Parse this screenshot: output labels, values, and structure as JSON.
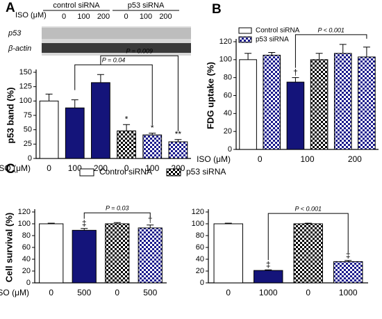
{
  "chart_data": [
    {
      "type": "bar",
      "panel": "A",
      "blot": {
        "dose_label": "ISO (μM)",
        "groups": [
          "control siRNA",
          "p53 siRNA"
        ],
        "doses": [
          "0",
          "100",
          "200",
          "0",
          "100",
          "200"
        ],
        "rows": [
          "p53",
          "β-actin"
        ]
      },
      "ylabel": "p53 band (%)",
      "xlabel": "ISO (μM)",
      "categories": [
        "0",
        "100",
        "200",
        "0",
        "100",
        "200"
      ],
      "values": [
        100,
        88,
        132,
        48,
        41,
        29
      ],
      "errors": [
        12,
        14,
        14,
        11,
        3,
        4
      ],
      "patterns": [
        "white",
        "navy",
        "navy",
        "blackCheck",
        "blueCheck",
        "blueCheck"
      ],
      "marks": [
        null,
        null,
        null,
        "*",
        "*",
        "**"
      ],
      "brackets": [
        {
          "label": "P = 0.04",
          "from": 1,
          "to": 4
        },
        {
          "label": "P = 0.009",
          "from": 2,
          "to": 5
        }
      ],
      "ylim": [
        0,
        150
      ],
      "yticks": [
        0,
        25,
        50,
        75,
        100,
        125,
        150
      ]
    },
    {
      "type": "bar",
      "panel": "B",
      "ylabel": "FDG uptake (%)",
      "xlabel": "ISO (μM)",
      "categories": [
        "0",
        "100",
        "200"
      ],
      "series": [
        {
          "name": "Control siRNA",
          "values": [
            100,
            75,
            107
          ],
          "errors": [
            7,
            5,
            10
          ],
          "patterns": [
            "white",
            "navy",
            "blueCheck"
          ],
          "marks": [
            null,
            "†",
            null
          ]
        },
        {
          "name": "p53 siRNA",
          "values": [
            105,
            100,
            103
          ],
          "errors": [
            3,
            7,
            11
          ],
          "patterns": [
            "blueCheck",
            "blackCheck",
            "blueCheck"
          ],
          "marks": [
            null,
            null,
            null
          ]
        }
      ],
      "brackets": [
        {
          "label": "P < 0.001",
          "from": 2,
          "to": 5
        }
      ],
      "ylim": [
        0,
        120
      ],
      "yticks": [
        0,
        20,
        40,
        60,
        80,
        100,
        120
      ]
    },
    {
      "type": "bar",
      "panel": "C",
      "legend": [
        {
          "name": "Control siRNA",
          "pattern": "white"
        },
        {
          "name": "p53 siRNA",
          "pattern": "blackCheck"
        }
      ],
      "ylabel": "Cell survival (%)",
      "xlabel": "ISO (μM)",
      "categories": [
        "0",
        "500",
        "0",
        "500"
      ],
      "values": [
        100,
        89,
        100,
        93
      ],
      "errors": [
        1,
        3,
        2,
        5
      ],
      "patterns": [
        "white",
        "navy",
        "blackCheck",
        "blueCheck"
      ],
      "marks": [
        null,
        "‡",
        null,
        "†"
      ],
      "brackets": [
        {
          "label": "P = 0.03",
          "from": 1,
          "to": 3
        }
      ],
      "ylim": [
        0,
        120
      ],
      "yticks": [
        0,
        20,
        40,
        60,
        80,
        100,
        120
      ]
    },
    {
      "type": "bar",
      "categories": [
        "0",
        "1000",
        "0",
        "1000"
      ],
      "values": [
        100,
        21,
        100,
        36
      ],
      "errors": [
        1,
        1,
        1,
        2
      ],
      "patterns": [
        "white",
        "navy",
        "blackCheck",
        "blueCheck"
      ],
      "marks": [
        null,
        "‡",
        null,
        "‡"
      ],
      "brackets": [
        {
          "label": "P < 0.001",
          "from": 1,
          "to": 3
        }
      ],
      "ylim": [
        0,
        120
      ],
      "yticks": [
        0,
        20,
        40,
        60,
        80,
        100,
        120
      ]
    }
  ]
}
